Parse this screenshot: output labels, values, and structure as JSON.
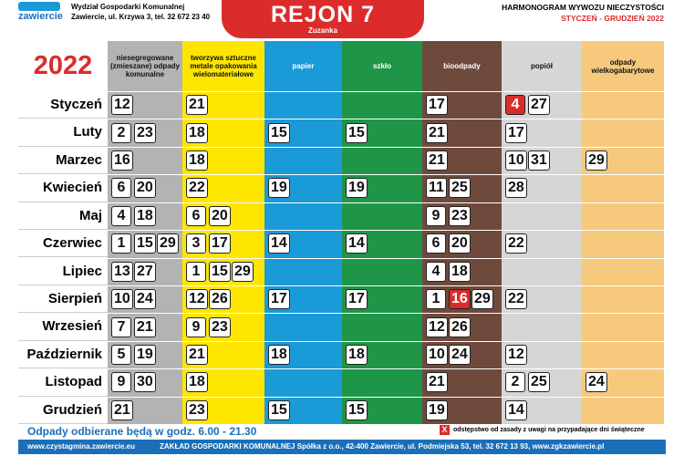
{
  "header": {
    "logo": "zawiercie",
    "department": "Wydział Gospodarki Komunalnej",
    "address": "Zawiercie, ul. Krzywa 3, tel. 32 672 23 40",
    "region": "REJON 7",
    "area": "Zuzanka",
    "title": "HARMONOGRAM WYWOZU NIECZYSTOŚCI",
    "period": "STYCZEŃ - GRUDZIEŃ 2022"
  },
  "table": {
    "year": "2022",
    "columns": [
      {
        "label": "niesegregowane (zmieszane) odpady komunalne",
        "color": "#b3b3b3"
      },
      {
        "label": "tworzywa sztuczne metale opakowania wielomateriałowe",
        "color": "#ffe600"
      },
      {
        "label": "papier",
        "color": "#1b9ad8"
      },
      {
        "label": "szkło",
        "color": "#1f9547"
      },
      {
        "label": "bioodpady",
        "color": "#6e4a3d"
      },
      {
        "label": "popiół",
        "color": "#d6d6d6"
      },
      {
        "label": "odpady wielkogabarytowe",
        "color": "#f6c97d"
      }
    ],
    "rows": [
      {
        "month": "Styczeń",
        "days": [
          [
            12
          ],
          [
            21
          ],
          [],
          [],
          [
            17
          ],
          [
            {
              "value": 4,
              "color": "#dc2b2b"
            },
            27
          ],
          []
        ]
      },
      {
        "month": "Luty",
        "days": [
          [
            2,
            23
          ],
          [
            18
          ],
          [
            15
          ],
          [
            15
          ],
          [
            21
          ],
          [
            17
          ],
          []
        ]
      },
      {
        "month": "Marzec",
        "days": [
          [
            16
          ],
          [
            18
          ],
          [],
          [],
          [
            21
          ],
          [
            10,
            31
          ],
          [
            29
          ]
        ]
      },
      {
        "month": "Kwiecień",
        "days": [
          [
            6,
            20
          ],
          [
            22
          ],
          [
            19
          ],
          [
            19
          ],
          [
            11,
            25
          ],
          [
            28
          ],
          []
        ]
      },
      {
        "month": "Maj",
        "days": [
          [
            4,
            18
          ],
          [
            6,
            20
          ],
          [],
          [],
          [
            9,
            23
          ],
          [],
          []
        ]
      },
      {
        "month": "Czerwiec",
        "days": [
          [
            1,
            15,
            29
          ],
          [
            3,
            17
          ],
          [
            14
          ],
          [
            14
          ],
          [
            6,
            20
          ],
          [
            22
          ],
          []
        ]
      },
      {
        "month": "Lipiec",
        "days": [
          [
            13,
            27
          ],
          [
            1,
            15,
            29
          ],
          [],
          [],
          [
            4,
            18
          ],
          [],
          []
        ]
      },
      {
        "month": "Sierpień",
        "days": [
          [
            10,
            24
          ],
          [
            12,
            26
          ],
          [
            17
          ],
          [
            17
          ],
          [
            1,
            {
              "value": 16,
              "color": "#dc2b2b"
            },
            29
          ],
          [
            22
          ],
          []
        ]
      },
      {
        "month": "Wrzesień",
        "days": [
          [
            7,
            21
          ],
          [
            9,
            23
          ],
          [],
          [],
          [
            12,
            26
          ],
          [],
          []
        ]
      },
      {
        "month": "Październik",
        "days": [
          [
            5,
            19
          ],
          [
            21
          ],
          [
            18
          ],
          [
            18
          ],
          [
            10,
            24
          ],
          [
            12
          ],
          []
        ]
      },
      {
        "month": "Listopad",
        "days": [
          [
            9,
            30
          ],
          [
            18
          ],
          [],
          [],
          [
            21
          ],
          [
            2,
            25
          ],
          [
            24
          ]
        ]
      },
      {
        "month": "Grudzień",
        "days": [
          [
            21
          ],
          [
            23
          ],
          [
            15
          ],
          [
            15
          ],
          [
            19
          ],
          [
            14
          ],
          []
        ]
      }
    ]
  },
  "footer": {
    "hours": "Odpady odbierane będą w godz. 6.00 - 21.30",
    "legend_mark": "X",
    "legend_text": "odstępstwo od zasady z uwagi na przypadające dni świąteczne",
    "website": "www.czystagmina.zawiercie.eu",
    "company": "ZAKŁAD GOSPODARKI KOMUNALNEJ Spółka z o.o., 42-400 Zawiercie, ul. Podmiejska 53, tel. 32 672 13 93, www.zgkzawiercie.pl"
  }
}
